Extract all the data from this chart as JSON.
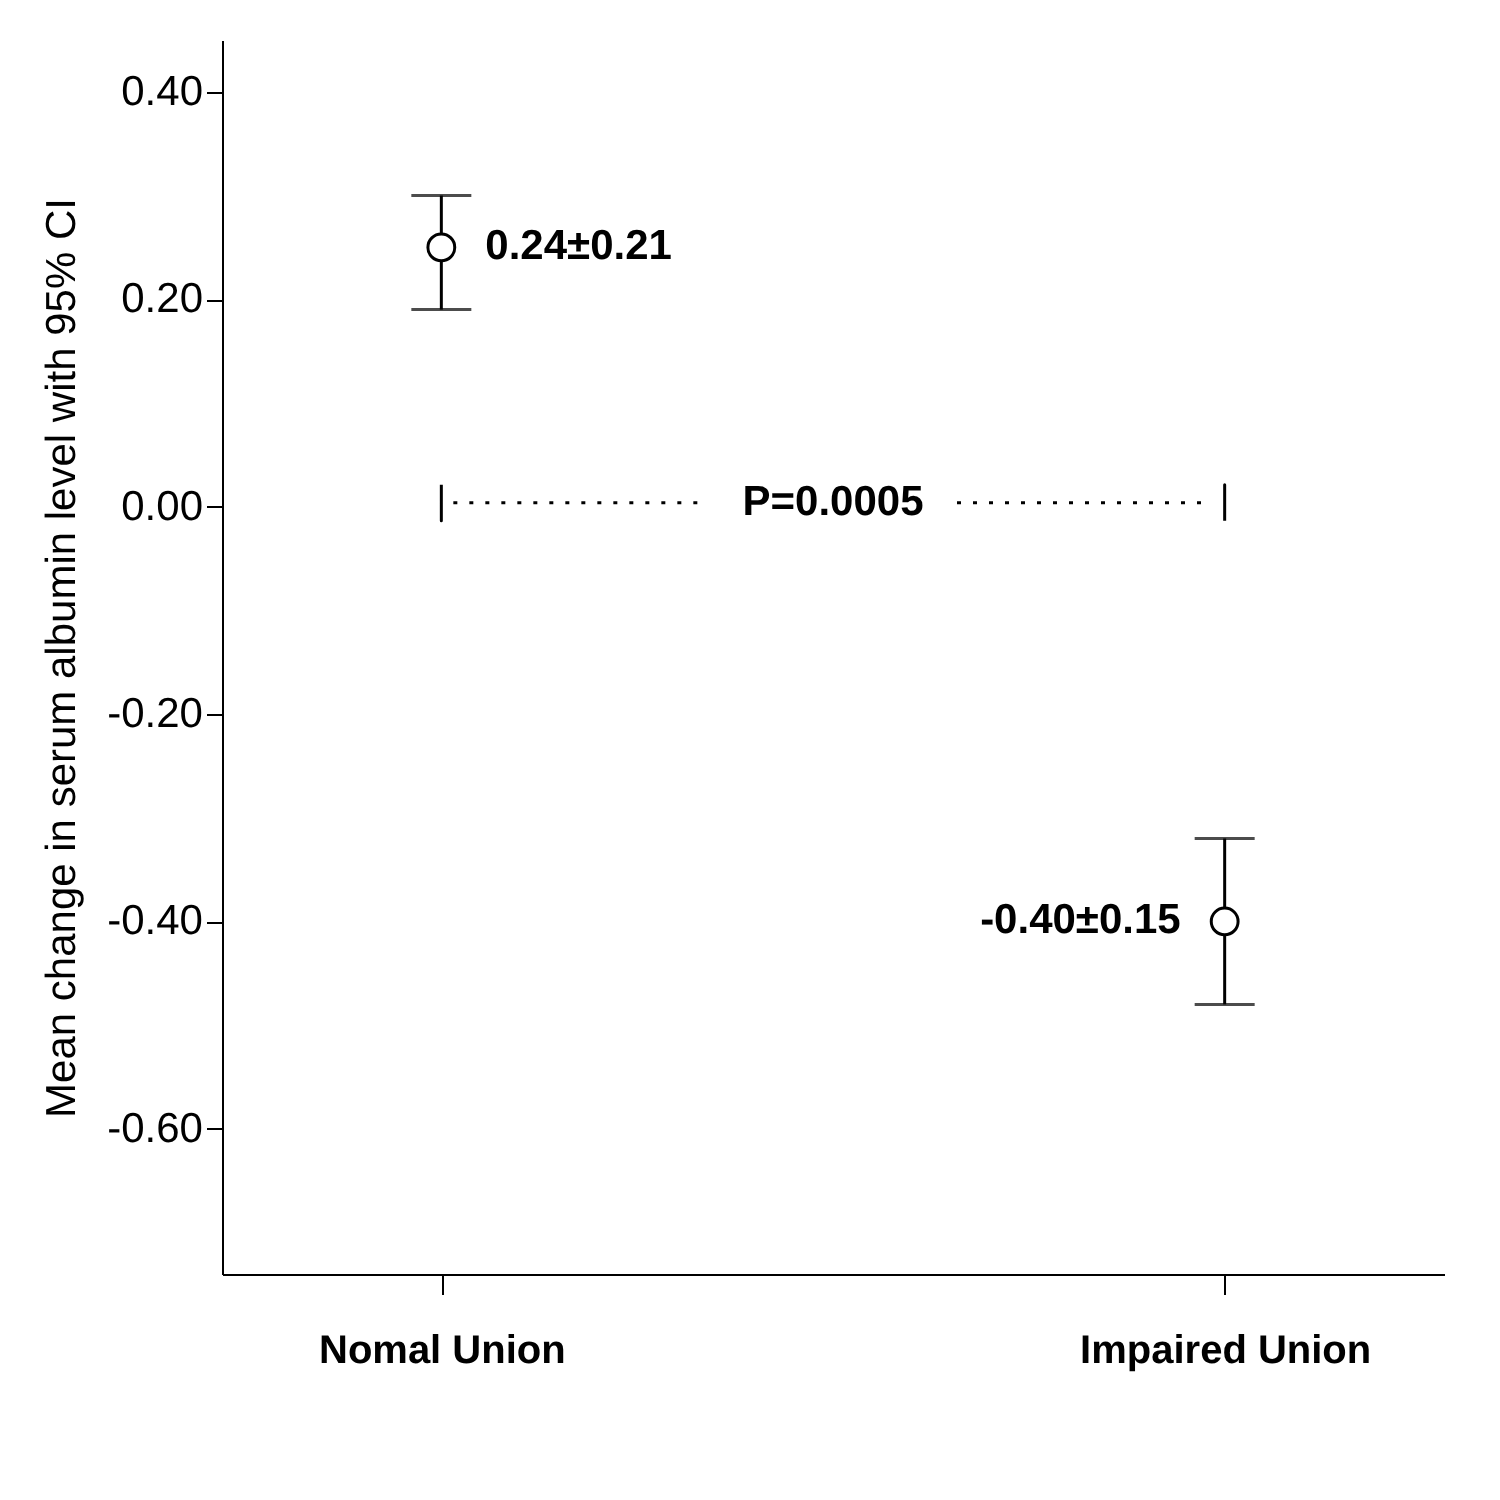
{
  "chart_data": {
    "type": "scatter",
    "ylabel": "Mean change in serum albumin level with 95% CI",
    "categories": [
      "Nomal Union",
      "Impaired Union"
    ],
    "values": [
      0.25,
      -0.4
    ],
    "errors": [
      [
        0.19,
        0.3
      ],
      [
        -0.48,
        -0.32
      ]
    ],
    "value_labels": [
      "0.24±0.21",
      "-0.40±0.15"
    ],
    "color": "#000000",
    "marker": "circle",
    "ylim": [
      -0.74,
      0.45
    ],
    "yticks": [
      {
        "value": 0.4,
        "label": "0.40"
      },
      {
        "value": 0.2,
        "label": "0.20"
      },
      {
        "value": 0,
        "label": "0.00"
      },
      {
        "value": -0.2,
        "label": "-0.20"
      },
      {
        "value": -0.4,
        "label": "-0.40"
      },
      {
        "value": -0.6,
        "label": "-0.60"
      }
    ],
    "annotations": [
      "P=0.0005"
    ],
    "grid": false
  }
}
